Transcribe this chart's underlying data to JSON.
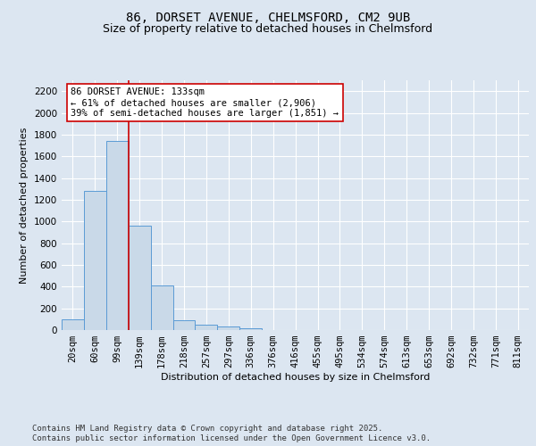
{
  "title_line1": "86, DORSET AVENUE, CHELMSFORD, CM2 9UB",
  "title_line2": "Size of property relative to detached houses in Chelmsford",
  "xlabel": "Distribution of detached houses by size in Chelmsford",
  "ylabel": "Number of detached properties",
  "categories": [
    "20sqm",
    "60sqm",
    "99sqm",
    "139sqm",
    "178sqm",
    "218sqm",
    "257sqm",
    "297sqm",
    "336sqm",
    "376sqm",
    "416sqm",
    "455sqm",
    "495sqm",
    "534sqm",
    "574sqm",
    "613sqm",
    "653sqm",
    "692sqm",
    "732sqm",
    "771sqm",
    "811sqm"
  ],
  "values": [
    95,
    1280,
    1740,
    960,
    410,
    90,
    50,
    30,
    20,
    0,
    0,
    0,
    0,
    0,
    0,
    0,
    0,
    0,
    0,
    0,
    0
  ],
  "bar_color": "#c9d9e8",
  "bar_edge_color": "#5b9bd5",
  "vline_x_index": 2.5,
  "vline_color": "#cc0000",
  "annotation_text": "86 DORSET AVENUE: 133sqm\n← 61% of detached houses are smaller (2,906)\n39% of semi-detached houses are larger (1,851) →",
  "annotation_box_facecolor": "#ffffff",
  "annotation_box_edgecolor": "#cc0000",
  "ylim": [
    0,
    2300
  ],
  "yticks": [
    0,
    200,
    400,
    600,
    800,
    1000,
    1200,
    1400,
    1600,
    1800,
    2000,
    2200
  ],
  "bg_color": "#dce6f1",
  "plot_bg_color": "#dce6f1",
  "grid_color": "#ffffff",
  "footer_line1": "Contains HM Land Registry data © Crown copyright and database right 2025.",
  "footer_line2": "Contains public sector information licensed under the Open Government Licence v3.0.",
  "title_fontsize": 10,
  "subtitle_fontsize": 9,
  "axis_label_fontsize": 8,
  "tick_fontsize": 7.5,
  "annotation_fontsize": 7.5,
  "footer_fontsize": 6.5
}
